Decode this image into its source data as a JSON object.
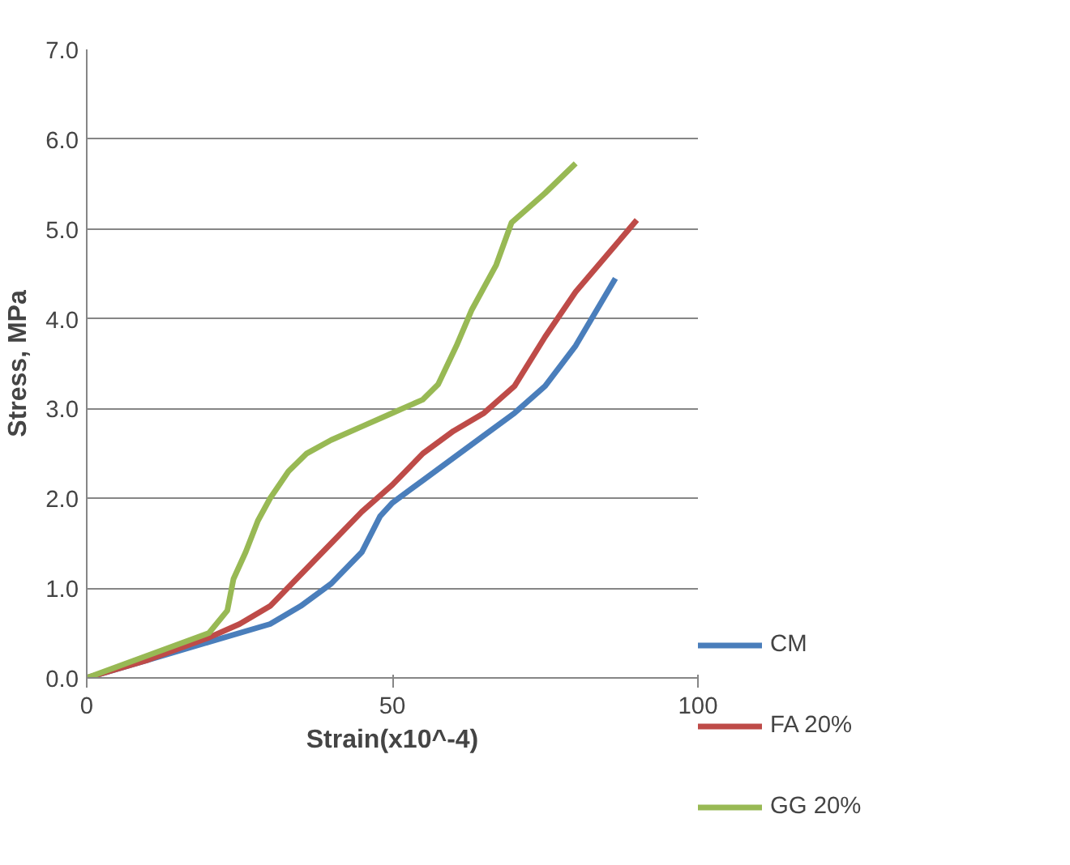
{
  "chart_data": {
    "type": "line",
    "xlabel": "Strain(x10^-4)",
    "ylabel": "Stress, MPa",
    "xlim": [
      0,
      100
    ],
    "xticks": [
      0,
      50,
      100
    ],
    "ylim": [
      0,
      7
    ],
    "yticks": [
      {
        "value": 0,
        "label": "0.0"
      },
      {
        "value": 1,
        "label": "1.0"
      },
      {
        "value": 2,
        "label": "2.0"
      },
      {
        "value": 3,
        "label": "3.0"
      },
      {
        "value": 4,
        "label": "4.0"
      },
      {
        "value": 5,
        "label": "5.0"
      },
      {
        "value": 6,
        "label": "6.0"
      },
      {
        "value": 7,
        "label": "7.0"
      }
    ],
    "grid": "y",
    "legend": "right",
    "marker": "none",
    "line_style": "solid",
    "series": [
      {
        "name": "CM",
        "color": "#4a7ebb",
        "x": [
          0,
          10,
          20,
          30,
          35,
          40,
          45,
          48,
          50,
          55,
          60,
          65,
          70,
          75,
          80,
          86.5
        ],
        "values": [
          0,
          0.2,
          0.4,
          0.6,
          0.8,
          1.05,
          1.4,
          1.8,
          1.95,
          2.2,
          2.45,
          2.7,
          2.95,
          3.25,
          3.7,
          4.45
        ]
      },
      {
        "name": "FA 20%",
        "color": "#be4b48",
        "x": [
          0,
          10,
          20,
          25,
          30,
          35,
          40,
          45,
          50,
          55,
          60,
          65,
          70,
          75,
          80,
          85,
          90
        ],
        "values": [
          0,
          0.2,
          0.45,
          0.6,
          0.8,
          1.15,
          1.5,
          1.85,
          2.15,
          2.5,
          2.75,
          2.95,
          3.25,
          3.8,
          4.3,
          4.7,
          5.1
        ]
      },
      {
        "name": "GG 20%",
        "color": "#98b954",
        "x": [
          0,
          10,
          20,
          23,
          24,
          26,
          28,
          30,
          33,
          36,
          40,
          45,
          50,
          55,
          57.5,
          60.5,
          63,
          67,
          69.5,
          75,
          80
        ],
        "values": [
          0,
          0.25,
          0.5,
          0.75,
          1.1,
          1.4,
          1.75,
          2.0,
          2.3,
          2.5,
          2.65,
          2.8,
          2.95,
          3.1,
          3.27,
          3.7,
          4.1,
          4.6,
          5.07,
          5.4,
          5.73
        ]
      }
    ]
  }
}
